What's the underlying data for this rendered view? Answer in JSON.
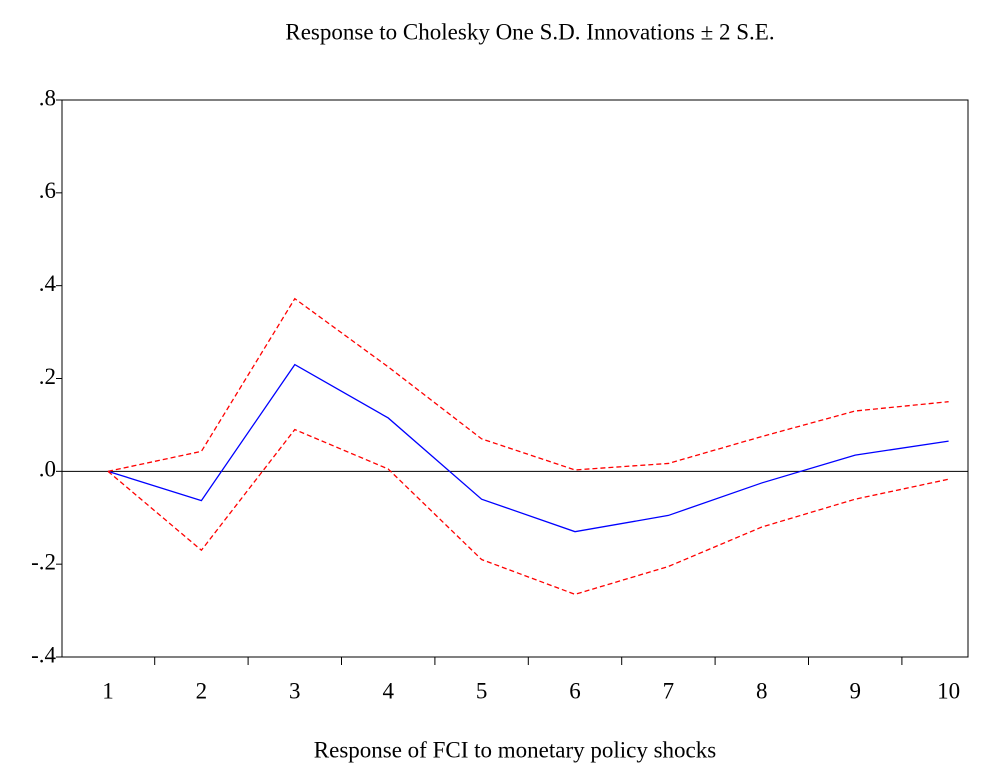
{
  "chart_data": {
    "type": "line",
    "title": "Response to Cholesky One S.D. Innovations ± 2 S.E.",
    "x_label": "Response of FCI to monetary policy shocks",
    "categories": [
      "1",
      "2",
      "3",
      "4",
      "5",
      "6",
      "7",
      "8",
      "9",
      "10"
    ],
    "series": [
      {
        "color": "#0000ff",
        "dash": "solid",
        "values": [
          0,
          -0.063,
          0.23,
          0.115,
          -0.06,
          -0.13,
          -0.095,
          -0.025,
          0.035,
          0.065
        ]
      },
      {
        "color": "#ff0000",
        "dash": "dashed",
        "values": [
          0,
          0.043,
          0.372,
          0.225,
          0.07,
          0.003,
          0.017,
          0.075,
          0.13,
          0.15
        ]
      },
      {
        "color": "#ff0000",
        "dash": "dashed",
        "values": [
          0,
          -0.17,
          0.09,
          0.005,
          -0.19,
          -0.265,
          -0.205,
          -0.12,
          -0.06,
          -0.017
        ]
      }
    ],
    "ylim": [
      -0.4,
      0.8
    ],
    "yticks": [
      {
        "value": 0.8,
        "label": ".8"
      },
      {
        "value": 0.6,
        "label": ".6"
      },
      {
        "value": 0.4,
        "label": ".4"
      },
      {
        "value": 0.2,
        "label": ".2"
      },
      {
        "value": 0,
        "label": ".0"
      },
      {
        "value": -0.2,
        "label": "-.2"
      },
      {
        "value": -0.4,
        "label": "-.4"
      }
    ],
    "zero_line": true
  }
}
